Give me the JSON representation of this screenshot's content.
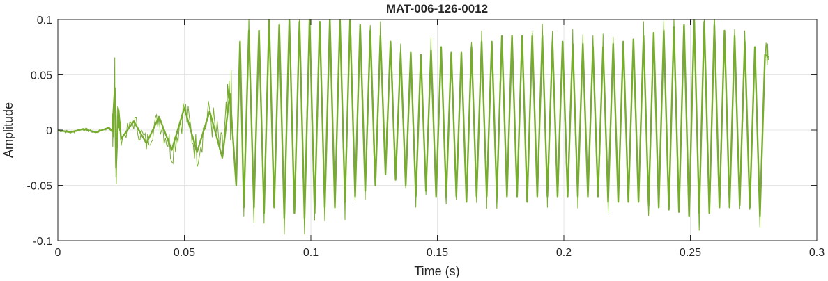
{
  "chart_data": {
    "type": "line",
    "title": "MAT-006-126-0012",
    "xlabel": "Time (s)",
    "ylabel": "Amplitude",
    "xlim": [
      0,
      0.3
    ],
    "ylim": [
      -0.1,
      0.1
    ],
    "xticks": [
      0,
      0.05,
      0.1,
      0.15,
      0.2,
      0.25,
      0.3
    ],
    "xtick_labels": [
      "0",
      "0.05",
      "0.1",
      "0.15",
      "0.2",
      "0.25",
      "0.3"
    ],
    "yticks": [
      -0.1,
      -0.05,
      0,
      0.05,
      0.1
    ],
    "ytick_labels": [
      "-0.1",
      "-0.05",
      "0",
      "0.05",
      "0.1"
    ],
    "grid": true,
    "color": "#77AC30",
    "series": [
      {
        "x": [
          0,
          0.005,
          0.01,
          0.015,
          0.02,
          0.0215,
          0.0225,
          0.023,
          0.024,
          0.025,
          0.03,
          0.035,
          0.04,
          0.045,
          0.05,
          0.055,
          0.06,
          0.065,
          0.068,
          0.0705,
          0.072,
          0.0735,
          0.0755,
          0.0775,
          0.0795,
          0.0815,
          0.0835,
          0.0855,
          0.0875,
          0.0895,
          0.0915,
          0.0935,
          0.0955,
          0.0975,
          0.0995,
          0.1015,
          0.1035,
          0.1055,
          0.1075,
          0.1095,
          0.1115,
          0.1135,
          0.1155,
          0.1175,
          0.1195,
          0.1215,
          0.1235,
          0.1255,
          0.1275,
          0.1295,
          0.1315,
          0.1335,
          0.1355,
          0.1375,
          0.1395,
          0.1415,
          0.1435,
          0.1455,
          0.1475,
          0.1495,
          0.1515,
          0.1535,
          0.1555,
          0.1575,
          0.1595,
          0.1615,
          0.1635,
          0.1655,
          0.1675,
          0.1695,
          0.1715,
          0.1735,
          0.1755,
          0.1775,
          0.1795,
          0.1815,
          0.1835,
          0.1855,
          0.1875,
          0.1895,
          0.1915,
          0.1935,
          0.1955,
          0.1975,
          0.1995,
          0.2015,
          0.2035,
          0.2055,
          0.2075,
          0.2095,
          0.2115,
          0.2135,
          0.2155,
          0.2175,
          0.2195,
          0.2215,
          0.2235,
          0.2255,
          0.2275,
          0.2295,
          0.2315,
          0.2335,
          0.2355,
          0.2375,
          0.2395,
          0.2415,
          0.2435,
          0.2455,
          0.2475,
          0.2495,
          0.2515,
          0.2535,
          0.2555,
          0.2575,
          0.2595,
          0.2615,
          0.2635,
          0.2655,
          0.2675,
          0.2695,
          0.2715,
          0.2735,
          0.2755,
          0.2775,
          0.2795,
          0.281
        ],
        "y": [
          0,
          -0.002,
          0.001,
          -0.002,
          0.002,
          -0.001,
          0.038,
          -0.034,
          0.018,
          -0.008,
          0.008,
          -0.012,
          0.012,
          -0.018,
          0.02,
          -0.02,
          0.017,
          -0.025,
          0.033,
          -0.05,
          0.08,
          -0.07,
          0.09,
          -0.07,
          0.09,
          -0.075,
          0.1,
          -0.07,
          0.095,
          -0.08,
          0.1,
          -0.075,
          0.098,
          -0.08,
          0.1,
          -0.075,
          0.098,
          -0.07,
          0.1,
          -0.07,
          0.1,
          -0.065,
          0.1,
          -0.06,
          0.095,
          -0.055,
          0.09,
          -0.05,
          0.085,
          -0.04,
          0.08,
          -0.045,
          0.07,
          -0.05,
          0.07,
          -0.06,
          0.068,
          -0.055,
          0.072,
          -0.06,
          0.075,
          -0.06,
          0.07,
          -0.06,
          0.07,
          -0.065,
          0.075,
          -0.06,
          0.08,
          -0.06,
          0.08,
          -0.06,
          0.085,
          -0.06,
          0.085,
          -0.06,
          0.085,
          -0.065,
          0.085,
          -0.06,
          0.085,
          -0.06,
          0.08,
          -0.06,
          0.08,
          -0.06,
          0.078,
          -0.06,
          0.078,
          -0.06,
          0.075,
          -0.06,
          0.075,
          -0.065,
          0.078,
          -0.065,
          0.08,
          -0.065,
          0.082,
          -0.065,
          0.085,
          -0.068,
          0.088,
          -0.07,
          0.09,
          -0.072,
          0.093,
          -0.074,
          0.095,
          -0.078,
          0.1,
          -0.075,
          0.098,
          -0.075,
          0.095,
          -0.07,
          0.09,
          -0.07,
          0.085,
          -0.068,
          0.08,
          -0.07,
          0.075,
          -0.078,
          0.068,
          0.066
        ]
      }
    ]
  }
}
